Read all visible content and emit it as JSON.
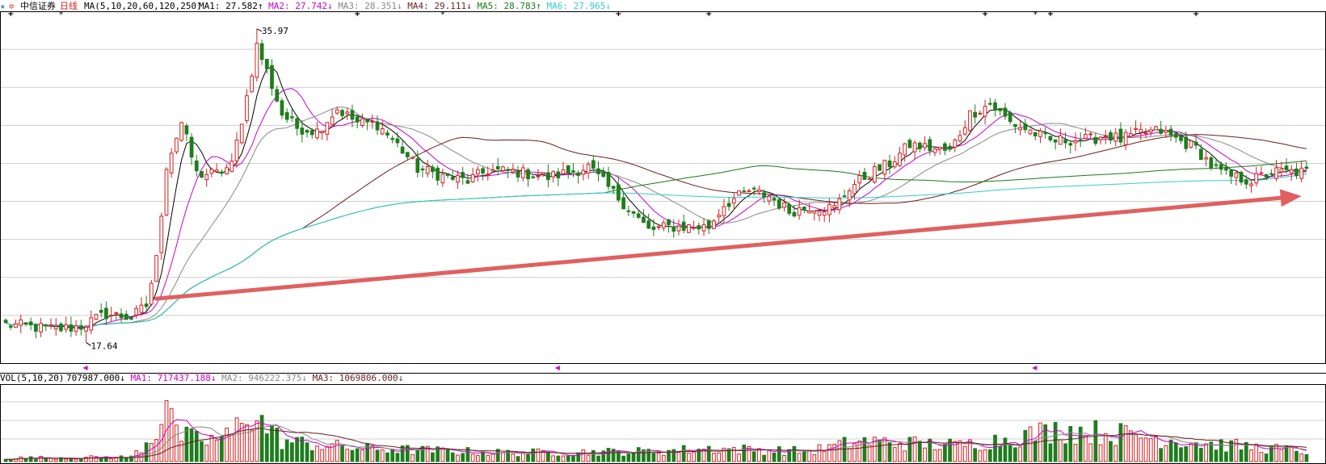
{
  "header": {
    "star_icon": "★",
    "gear_icon": "✡",
    "stock_name": "中信证券",
    "period": "日线",
    "ma_title": "MA(5,10,20,60,120,250)",
    "ma_items": [
      {
        "label": "MA1:",
        "value": "27.582",
        "arrow": "↑",
        "color": "#000000"
      },
      {
        "label": "MA2:",
        "value": "27.742",
        "arrow": "↓",
        "color": "#cc00cc"
      },
      {
        "label": "MA3:",
        "value": "28.351",
        "arrow": "↓",
        "color": "#888888"
      },
      {
        "label": "MA4:",
        "value": "29.111",
        "arrow": "↓",
        "color": "#6b1f1f"
      },
      {
        "label": "MA5:",
        "value": "28.783",
        "arrow": "↑",
        "color": "#1a7a1a"
      },
      {
        "label": "MA6:",
        "value": "27.965",
        "arrow": "↓",
        "color": "#33cccc"
      }
    ]
  },
  "vol_header": {
    "title": "VOL(5,10,20)",
    "value": "707987.000",
    "value_arrow": "↓",
    "ma_items": [
      {
        "label": "MA1:",
        "value": "717437.188",
        "arrow": "↓",
        "color": "#cc00cc"
      },
      {
        "label": "MA2:",
        "value": "946222.375",
        "arrow": "↓",
        "color": "#888888"
      },
      {
        "label": "MA3:",
        "value": "1069806.000",
        "arrow": "↓",
        "color": "#6b1f1f"
      }
    ]
  },
  "annotations": {
    "high_label": "35.97",
    "low_label": "17.64"
  },
  "chart_data": {
    "type": "candlestick",
    "price_range": [
      17.0,
      37.0
    ],
    "high": 35.97,
    "low": 17.64,
    "candle_count": 260,
    "volume_range": [
      0,
      10000000
    ],
    "trend_arrow": {
      "from_index": 30,
      "to_index": 258,
      "from_price": 20.2,
      "to_price": 26.2,
      "color": "#e06060"
    },
    "marker_columns": [
      1,
      11,
      70,
      87,
      122,
      140,
      195,
      205,
      208,
      237
    ],
    "anchors": [
      [
        0,
        18.7
      ],
      [
        10,
        18.4
      ],
      [
        15,
        18.6
      ],
      [
        20,
        19.3
      ],
      [
        25,
        19.1
      ],
      [
        28,
        19.8
      ],
      [
        30,
        22.5
      ],
      [
        32,
        28.0
      ],
      [
        35,
        30.5
      ],
      [
        38,
        27.5
      ],
      [
        42,
        27.5
      ],
      [
        45,
        28.0
      ],
      [
        48,
        32.0
      ],
      [
        50,
        35.0
      ],
      [
        52,
        33.5
      ],
      [
        55,
        31.0
      ],
      [
        58,
        30.2
      ],
      [
        62,
        30.0
      ],
      [
        66,
        31.3
      ],
      [
        70,
        30.5
      ],
      [
        74,
        30.4
      ],
      [
        78,
        29.2
      ],
      [
        82,
        27.8
      ],
      [
        88,
        27.3
      ],
      [
        92,
        27.1
      ],
      [
        96,
        27.7
      ],
      [
        102,
        27.6
      ],
      [
        108,
        27.3
      ],
      [
        116,
        27.9
      ],
      [
        120,
        26.7
      ],
      [
        124,
        25.5
      ],
      [
        128,
        24.2
      ],
      [
        132,
        24.4
      ],
      [
        140,
        24.4
      ],
      [
        143,
        25.7
      ],
      [
        148,
        26.5
      ],
      [
        152,
        26.2
      ],
      [
        156,
        25.3
      ],
      [
        160,
        25.6
      ],
      [
        165,
        25.5
      ],
      [
        168,
        26.7
      ],
      [
        172,
        27.5
      ],
      [
        176,
        28.1
      ],
      [
        180,
        29.2
      ],
      [
        184,
        29.0
      ],
      [
        188,
        28.8
      ],
      [
        192,
        31.0
      ],
      [
        196,
        31.6
      ],
      [
        200,
        30.5
      ],
      [
        204,
        30.0
      ],
      [
        208,
        29.4
      ],
      [
        212,
        29.5
      ],
      [
        216,
        29.5
      ],
      [
        219,
        29.8
      ],
      [
        222,
        29.5
      ],
      [
        226,
        29.9
      ],
      [
        230,
        30.0
      ],
      [
        234,
        29.4
      ],
      [
        237,
        29.0
      ],
      [
        240,
        28.0
      ],
      [
        243,
        27.4
      ],
      [
        248,
        27.1
      ],
      [
        252,
        27.6
      ],
      [
        256,
        27.6
      ],
      [
        259,
        27.6
      ]
    ],
    "vol_anchors": [
      [
        0,
        0.12
      ],
      [
        25,
        0.15
      ],
      [
        30,
        1.0
      ],
      [
        32,
        2.4
      ],
      [
        34,
        0.9
      ],
      [
        40,
        0.7
      ],
      [
        45,
        0.9
      ],
      [
        48,
        1.8
      ],
      [
        55,
        0.7
      ],
      [
        70,
        0.45
      ],
      [
        100,
        0.3
      ],
      [
        130,
        0.35
      ],
      [
        140,
        0.45
      ],
      [
        160,
        0.35
      ],
      [
        170,
        0.7
      ],
      [
        190,
        0.55
      ],
      [
        200,
        0.8
      ],
      [
        210,
        1.1
      ],
      [
        225,
        0.9
      ],
      [
        240,
        0.6
      ],
      [
        259,
        0.35
      ]
    ],
    "moving_averages": [
      {
        "name": "MA1",
        "period": 5,
        "color": "#000000"
      },
      {
        "name": "MA2",
        "period": 10,
        "color": "#cc00cc"
      },
      {
        "name": "MA3",
        "period": 20,
        "color": "#888888"
      },
      {
        "name": "MA4",
        "period": 60,
        "color": "#6b1f1f"
      },
      {
        "name": "MA5",
        "period": 120,
        "color": "#1a7a1a"
      },
      {
        "name": "MA6",
        "period": 250,
        "color": "#33cccc"
      }
    ],
    "colors": {
      "up": "#d62020",
      "down": "#1e7d1e",
      "grid": "#cfcfcf"
    }
  }
}
